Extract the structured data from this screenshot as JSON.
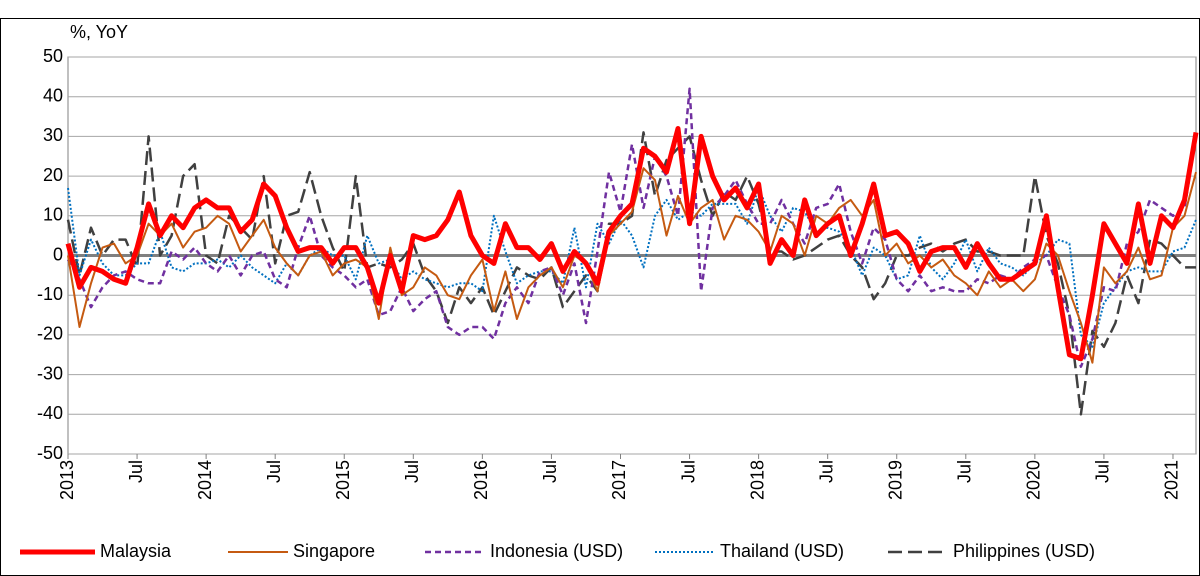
{
  "chart_data": {
    "type": "line",
    "y_label": "%, YoY",
    "categories": [
      "2013",
      null,
      null,
      null,
      null,
      null,
      "Jul",
      null,
      null,
      null,
      null,
      null,
      "2014",
      null,
      null,
      null,
      null,
      null,
      "Jul",
      null,
      null,
      null,
      null,
      null,
      "2015",
      null,
      null,
      null,
      null,
      null,
      "Jul",
      null,
      null,
      null,
      null,
      null,
      "2016",
      null,
      null,
      null,
      null,
      null,
      "Jul",
      null,
      null,
      null,
      null,
      null,
      "2017",
      null,
      null,
      null,
      null,
      null,
      "Jul",
      null,
      null,
      null,
      null,
      null,
      "2018",
      null,
      null,
      null,
      null,
      null,
      "Jul",
      null,
      null,
      null,
      null,
      null,
      "2019",
      null,
      null,
      null,
      null,
      null,
      "Jul",
      null,
      null,
      null,
      null,
      null,
      "2020",
      null,
      null,
      null,
      null,
      null,
      "Jul",
      null,
      null,
      null,
      null,
      null,
      "2021",
      null,
      null
    ],
    "ylim": [
      -50,
      50
    ],
    "yticks": [
      -50,
      -40,
      -30,
      -20,
      -10,
      0,
      10,
      20,
      30,
      40,
      50
    ],
    "grid": true,
    "legend": "bottom",
    "series": [
      {
        "name": "Malaysia",
        "color": "#ff0000",
        "style": "solid-thick",
        "values": [
          3,
          -8,
          -3,
          -4,
          -6,
          -7,
          2,
          13,
          5,
          10,
          7,
          12,
          14,
          12,
          12,
          6,
          9,
          18,
          15,
          7,
          1,
          2,
          2,
          -2,
          2,
          2,
          -3,
          -12,
          0,
          -9,
          5,
          4,
          5,
          9,
          16,
          5,
          0,
          -2,
          8,
          2,
          2,
          -1,
          3,
          -4,
          1,
          -2,
          -7,
          6,
          10,
          13,
          27,
          25,
          21,
          32,
          8,
          30,
          20,
          14,
          17,
          12,
          18,
          -2,
          4,
          0,
          14,
          5,
          8,
          10,
          0,
          8,
          18,
          5,
          6,
          3,
          -4,
          1,
          2,
          2,
          -3,
          3,
          -2,
          -6,
          -6,
          -4,
          -2,
          10,
          -8,
          -25,
          -26,
          -10,
          8,
          3,
          -2,
          13,
          -2,
          10,
          7,
          14,
          31
        ]
      },
      {
        "name": "Singapore",
        "color": "#c55a11",
        "style": "solid",
        "values": [
          0,
          -18,
          -7,
          2,
          3,
          -2,
          0,
          8,
          5,
          8,
          2,
          6,
          7,
          10,
          8,
          1,
          5,
          9,
          2,
          -2,
          -5,
          0,
          1,
          -5,
          -2,
          -1,
          -3,
          -16,
          2,
          -10,
          -8,
          -3,
          -5,
          -10,
          -11,
          -5,
          -1,
          -14,
          -4,
          -16,
          -8,
          -5,
          -3,
          -8,
          0,
          -2,
          -9,
          5,
          8,
          11,
          22,
          19,
          5,
          15,
          8,
          12,
          14,
          4,
          10,
          9,
          6,
          1,
          10,
          8,
          0,
          10,
          8,
          12,
          14,
          10,
          14,
          0,
          3,
          -2,
          0,
          -3,
          -1,
          -5,
          -7,
          -10,
          -4,
          -8,
          -6,
          -9,
          -6,
          3,
          0,
          -9,
          -17,
          -27,
          -3,
          -7,
          -4,
          2,
          -6,
          -5,
          7,
          10,
          21
        ]
      },
      {
        "name": "Indonesia (USD)",
        "color": "#7030a0",
        "style": "dashed",
        "values": [
          -1,
          -6,
          -13,
          -8,
          -5,
          -4,
          -6,
          -7,
          -7,
          1,
          -1,
          2,
          -2,
          -4,
          0,
          -5,
          0,
          1,
          -6,
          -8,
          2,
          10,
          0,
          -3,
          -5,
          -8,
          -6,
          -15,
          -14,
          -8,
          -14,
          -11,
          -9,
          -18,
          -20,
          -18,
          -18,
          -21,
          -12,
          -8,
          -12,
          -4,
          -3,
          -10,
          -2,
          -17,
          1,
          21,
          11,
          28,
          12,
          25,
          20,
          10,
          42,
          -9,
          12,
          15,
          19,
          13,
          8,
          8,
          14,
          8,
          3,
          12,
          13,
          18,
          6,
          -2,
          7,
          4,
          -6,
          -9,
          -5,
          -9,
          -8,
          -9,
          -9,
          -6,
          -7,
          -5,
          -6,
          -3,
          -1,
          0,
          -8,
          -15,
          -28,
          -21,
          -8,
          -9,
          3,
          6,
          14,
          12,
          10,
          12,
          30
        ]
      },
      {
        "name": "Thailand (USD)",
        "color": "#0070c0",
        "style": "dotted",
        "values": [
          17,
          -5,
          4,
          -2,
          -5,
          -5,
          -2,
          -2,
          6,
          -3,
          -4,
          -2,
          -2,
          -1,
          -3,
          0,
          -3,
          -5,
          -7,
          -2,
          -5,
          0,
          2,
          0,
          0,
          -6,
          5,
          -2,
          -1,
          -6,
          -4,
          -6,
          -7,
          -8,
          -7,
          -7,
          -9,
          10,
          1,
          -7,
          -5,
          -4,
          -4,
          -7,
          7,
          -8,
          8,
          3,
          9,
          5,
          -3,
          10,
          14,
          9,
          11,
          10,
          13,
          13,
          13,
          8,
          17,
          10,
          6,
          12,
          11,
          6,
          7,
          6,
          2,
          -5,
          2,
          0,
          -6,
          -5,
          5,
          -3,
          -6,
          -2,
          4,
          -4,
          2,
          -2,
          -3,
          -5,
          -2,
          0,
          4,
          3,
          -20,
          -23,
          -12,
          -8,
          -4,
          -3,
          -4,
          -4,
          1,
          2,
          9
        ]
      },
      {
        "name": "Philippines (USD)",
        "color": "#404040",
        "style": "longdash",
        "values": [
          9,
          -5,
          7,
          0,
          4,
          4,
          -3,
          30,
          0,
          5,
          20,
          23,
          0,
          -2,
          10,
          7,
          4,
          20,
          -2,
          10,
          11,
          21,
          10,
          2,
          -4,
          20,
          -3,
          -2,
          -3,
          -1,
          3,
          -5,
          -9,
          -17,
          -8,
          -12,
          -8,
          -15,
          -9,
          -3,
          -5,
          -6,
          -3,
          -13,
          -9,
          -5,
          -9,
          8,
          8,
          10,
          31,
          15,
          24,
          27,
          30,
          19,
          10,
          16,
          14,
          20,
          13,
          1,
          1,
          -1,
          0,
          2,
          4,
          5,
          0,
          -3,
          -11,
          -7,
          0,
          0,
          2,
          3,
          1,
          3,
          4,
          1,
          1,
          0,
          0,
          0,
          20,
          5,
          -2,
          -15,
          -40,
          -19,
          -23,
          -17,
          -5,
          -12,
          4,
          3,
          0,
          -3,
          -3
        ]
      }
    ]
  }
}
